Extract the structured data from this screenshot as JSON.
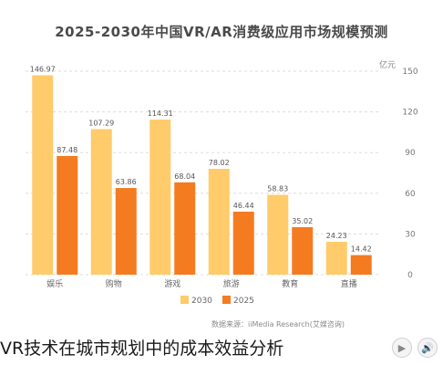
{
  "chart_data": {
    "type": "bar",
    "title": "2025-2030年中国VR/AR消费级应用市场规模预测",
    "unit": "亿元",
    "categories": [
      "娱乐",
      "购物",
      "游戏",
      "旅游",
      "教育",
      "直播"
    ],
    "series": [
      {
        "name": "2030",
        "color": "#FFCB6B",
        "values": [
          146.97,
          107.29,
          114.31,
          78.02,
          58.83,
          24.23
        ]
      },
      {
        "name": "2025",
        "color": "#F47B20",
        "values": [
          87.48,
          63.86,
          68.04,
          46.44,
          35.02,
          14.42
        ]
      }
    ],
    "y_ticks": [
      "0",
      "30",
      "60",
      "90",
      "120",
      "150"
    ],
    "ylim": [
      0,
      150
    ],
    "y_axis_position": "right",
    "grid": true,
    "legend_position": "bottom-center",
    "source": "数据来源：iiMedia Research(艾媒咨询)"
  },
  "caption": "VR技术在城市规划中的成本效益分析",
  "caption_icons": [
    "play-icon",
    "speaker-icon"
  ],
  "caption_icon_glyphs": [
    "▶",
    "🔊"
  ]
}
